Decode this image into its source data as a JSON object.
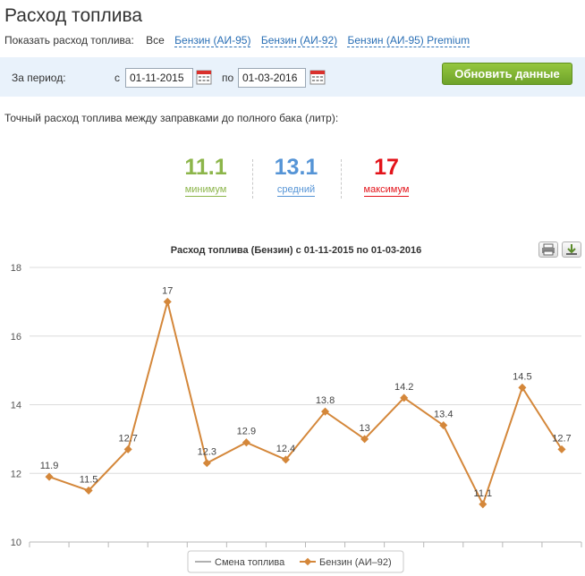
{
  "header": {
    "title": "Расход топлива"
  },
  "filter": {
    "label": "Показать расход топлива:",
    "options": [
      {
        "label": "Все",
        "active": true
      },
      {
        "label": "Бензин (АИ-95)",
        "active": false
      },
      {
        "label": "Бензин (АИ-92)",
        "active": false
      },
      {
        "label": "Бензин (АИ-95) Premium",
        "active": false
      }
    ]
  },
  "period": {
    "label": "За период:",
    "from_label": "с",
    "from_value": "01-11-2015",
    "to_label": "по",
    "to_value": "01-03-2016",
    "calendar_icon": "calendar-icon",
    "refresh_label": "Обновить данные"
  },
  "subtitle": "Точный расход топлива между заправками до полного бака (литр):",
  "stats": {
    "min": {
      "value": "11.1",
      "label": "минимум",
      "color": "#8cb54a"
    },
    "avg": {
      "value": "13.1",
      "label": "средний",
      "color": "#5594d6"
    },
    "max": {
      "value": "17",
      "label": "максимум",
      "color": "#e3131a"
    }
  },
  "toolbar": {
    "print_icon": "print-icon",
    "download_icon": "download-icon"
  },
  "chart_data": {
    "type": "line",
    "title": "Расход топлива (Бензин) с 01-11-2015 по 01-03-2016",
    "ylim": [
      10,
      18
    ],
    "yticks": [
      10,
      12,
      14,
      16,
      18
    ],
    "grid": true,
    "legend_position": "bottom",
    "series": [
      {
        "name": "Смена топлива",
        "color": "#b0b0b0",
        "values": []
      },
      {
        "name": "Бензин (АИ–92)",
        "color": "#d4873a",
        "values": [
          11.9,
          11.5,
          12.7,
          17,
          12.3,
          12.9,
          12.4,
          13.8,
          13,
          14.2,
          13.4,
          11.1,
          14.5,
          12.7
        ]
      }
    ]
  }
}
